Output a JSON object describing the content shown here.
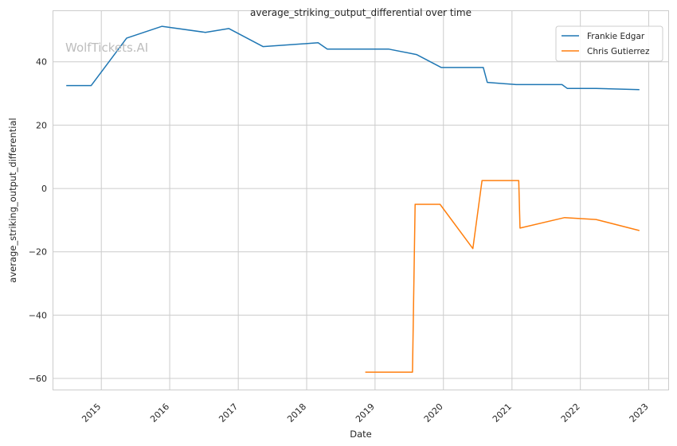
{
  "chart_data": {
    "type": "line",
    "title": "average_striking_output_differential over time",
    "xlabel": "Date",
    "ylabel": "average_striking_output_differential",
    "watermark": "WolfTickets.AI",
    "x_ticks": [
      "2015",
      "2016",
      "2017",
      "2018",
      "2019",
      "2020",
      "2021",
      "2022",
      "2023"
    ],
    "y_ticks": [
      -60,
      -40,
      -20,
      0,
      20,
      40
    ],
    "xlim": [
      "2014-04-20",
      "2023-04-15"
    ],
    "ylim": [
      -63.5,
      56
    ],
    "grid": true,
    "legend_position": "top-right",
    "series": [
      {
        "name": "Frankie Edgar",
        "color": "#1f77b4",
        "points": [
          [
            "2014-06-28",
            32.5
          ],
          [
            "2014-11-08",
            32.5
          ],
          [
            "2015-05-16",
            47.5
          ],
          [
            "2015-11-21",
            51.2
          ],
          [
            "2016-07-09",
            49.3
          ],
          [
            "2016-11-12",
            50.5
          ],
          [
            "2017-05-13",
            44.8
          ],
          [
            "2018-03-03",
            46.0
          ],
          [
            "2018-04-21",
            44.0
          ],
          [
            "2019-03-16",
            44.0
          ],
          [
            "2019-08-10",
            42.3
          ],
          [
            "2019-12-21",
            38.2
          ],
          [
            "2020-08-01",
            38.2
          ],
          [
            "2020-08-22",
            33.5
          ],
          [
            "2021-01-23",
            32.8
          ],
          [
            "2021-09-25",
            32.8
          ],
          [
            "2021-10-23",
            31.6
          ],
          [
            "2022-03-26",
            31.6
          ],
          [
            "2022-11-12",
            31.2
          ]
        ]
      },
      {
        "name": "Chris Gutierrez",
        "color": "#ff7f0e",
        "points": [
          [
            "2018-11-10",
            -58.0
          ],
          [
            "2019-07-20",
            -58.0
          ],
          [
            "2019-08-03",
            -5.0
          ],
          [
            "2019-12-14",
            -5.0
          ],
          [
            "2020-06-06",
            -19.0
          ],
          [
            "2020-07-25",
            2.5
          ],
          [
            "2021-02-06",
            2.5
          ],
          [
            "2021-02-13",
            -12.5
          ],
          [
            "2021-10-09",
            -9.2
          ],
          [
            "2022-03-26",
            -9.8
          ],
          [
            "2022-11-12",
            -13.3
          ]
        ]
      }
    ]
  }
}
